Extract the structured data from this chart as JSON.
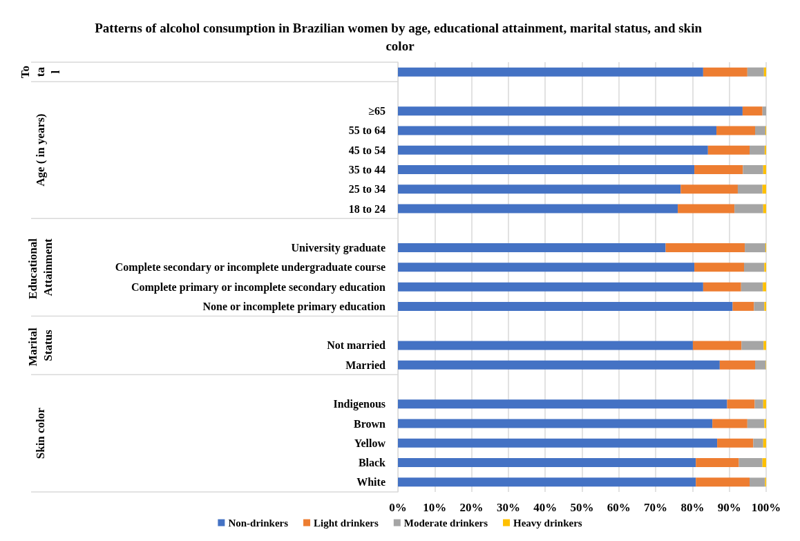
{
  "chart_data": {
    "type": "bar",
    "orientation": "horizontal",
    "stacked": true,
    "title": "Patterns of alcohol consumption in Brazilian women by age, educational attainment, marital status, and skin color",
    "categories": [
      null,
      null,
      "≥65",
      "55 to 64",
      "45 to 54",
      "35 to 44",
      "25 to 34",
      "18 to 24",
      null,
      "University graduate",
      "Complete secondary or incomplete undergraduate course",
      "Complete primary or incomplete secondary education",
      "None or incomplete primary education",
      null,
      "Not married",
      "Married",
      null,
      "Indigenous",
      "Brown",
      "Yellow",
      "Black",
      "White"
    ],
    "series": [
      {
        "name": "Non-drinkers",
        "color": "#4472c4",
        "values": [
          82.9,
          null,
          93.6,
          86.5,
          84.2,
          80.5,
          76.8,
          76.0,
          null,
          72.7,
          80.5,
          82.9,
          90.9,
          null,
          80.1,
          87.4,
          null,
          89.4,
          85.4,
          86.7,
          80.9,
          80.9
        ]
      },
      {
        "name": "Light drinkers",
        "color": "#ed7d31",
        "values": [
          12.0,
          null,
          5.4,
          10.5,
          11.3,
          13.2,
          15.5,
          15.4,
          null,
          21.5,
          13.5,
          10.3,
          5.8,
          null,
          13.2,
          9.6,
          null,
          7.5,
          9.5,
          9.8,
          11.7,
          14.6
        ]
      },
      {
        "name": "Moderate drinkers",
        "color": "#a5a5a5",
        "values": [
          4.5,
          null,
          1.0,
          2.8,
          4.1,
          5.5,
          6.7,
          7.8,
          null,
          5.6,
          5.5,
          5.9,
          2.8,
          null,
          6.0,
          2.9,
          null,
          2.3,
          4.6,
          2.7,
          6.4,
          4.2
        ]
      },
      {
        "name": "Heavy drinkers",
        "color": "#ffc000",
        "values": [
          0.6,
          null,
          0.0,
          0.2,
          0.4,
          0.8,
          1.0,
          0.8,
          null,
          0.2,
          0.5,
          0.9,
          0.5,
          null,
          0.7,
          0.1,
          null,
          0.8,
          0.5,
          0.8,
          1.0,
          0.3
        ]
      }
    ],
    "xlim": [
      0,
      100
    ],
    "xticks": [
      {
        "value": 0,
        "label": "0%"
      },
      {
        "value": 10,
        "label": "10%"
      },
      {
        "value": 20,
        "label": "20%"
      },
      {
        "value": 30,
        "label": "30%"
      },
      {
        "value": 40,
        "label": "40%"
      },
      {
        "value": 50,
        "label": "50%"
      },
      {
        "value": 60,
        "label": "60%"
      },
      {
        "value": 70,
        "label": "70%"
      },
      {
        "value": 80,
        "label": "80%"
      },
      {
        "value": 90,
        "label": "90%"
      },
      {
        "value": 100,
        "label": "100%"
      }
    ],
    "annotations": [
      "Total",
      "Age ( in years)",
      "Educational Attainment",
      "Marital Status",
      "Skin color"
    ],
    "grid": "x",
    "legend": "bottom"
  }
}
